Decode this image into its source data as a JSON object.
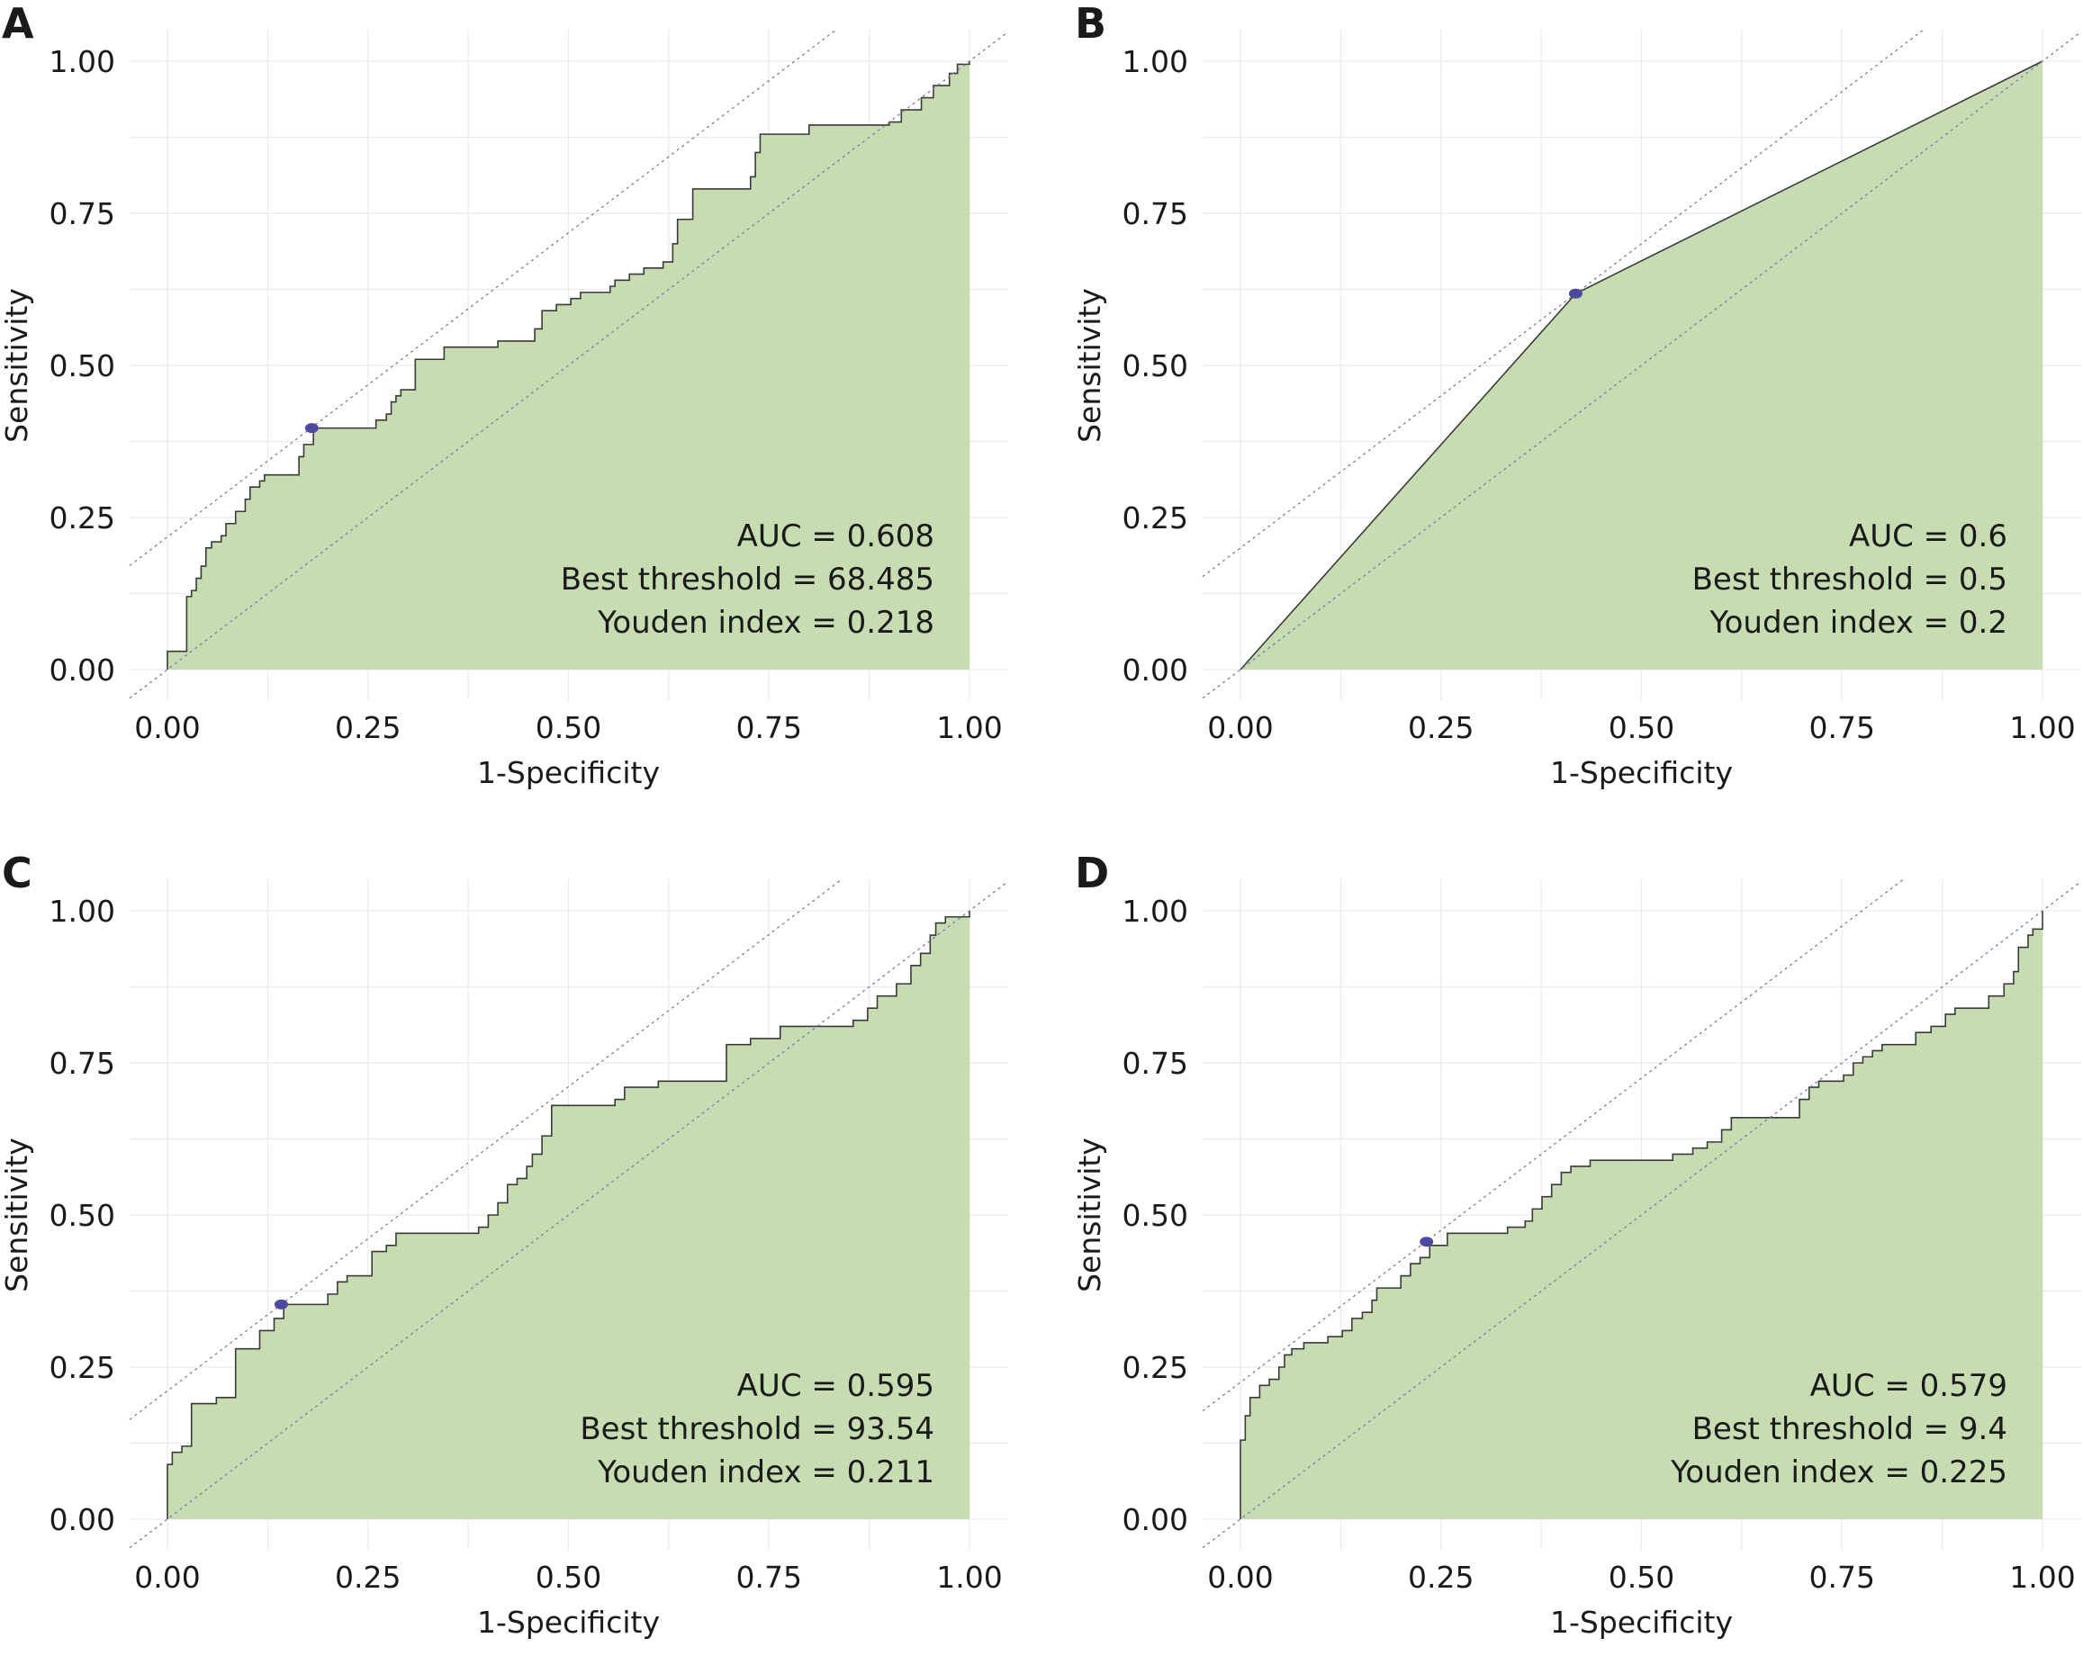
{
  "chart_data": [
    {
      "type": "area",
      "panel_label": "A",
      "xlabel": "1-Specificity",
      "ylabel": "Sensitivity",
      "xlim": [
        0,
        1
      ],
      "ylim": [
        0,
        1
      ],
      "x_ticks": [
        "0.00",
        "0.25",
        "0.50",
        "0.75",
        "1.00"
      ],
      "y_ticks": [
        "0.00",
        "0.25",
        "0.50",
        "0.75",
        "1.00"
      ],
      "grid": true,
      "annotations": [
        "AUC = 0.608",
        "Best threshold = 68.485",
        "Youden index = 0.218"
      ],
      "best_point": {
        "x": 0.18,
        "y": 0.397
      },
      "youden_line_intercept": 0.218,
      "roc_curve": [
        [
          0,
          0
        ],
        [
          0,
          0.03
        ],
        [
          0.024,
          0.03
        ],
        [
          0.024,
          0.12
        ],
        [
          0.03,
          0.12
        ],
        [
          0.03,
          0.13
        ],
        [
          0.036,
          0.13
        ],
        [
          0.036,
          0.15
        ],
        [
          0.042,
          0.15
        ],
        [
          0.042,
          0.17
        ],
        [
          0.048,
          0.17
        ],
        [
          0.048,
          0.2
        ],
        [
          0.055,
          0.2
        ],
        [
          0.055,
          0.21
        ],
        [
          0.067,
          0.21
        ],
        [
          0.067,
          0.22
        ],
        [
          0.073,
          0.22
        ],
        [
          0.073,
          0.24
        ],
        [
          0.085,
          0.24
        ],
        [
          0.085,
          0.26
        ],
        [
          0.097,
          0.26
        ],
        [
          0.097,
          0.28
        ],
        [
          0.103,
          0.28
        ],
        [
          0.103,
          0.3
        ],
        [
          0.115,
          0.3
        ],
        [
          0.115,
          0.31
        ],
        [
          0.121,
          0.31
        ],
        [
          0.121,
          0.32
        ],
        [
          0.164,
          0.32
        ],
        [
          0.164,
          0.35
        ],
        [
          0.17,
          0.35
        ],
        [
          0.17,
          0.37
        ],
        [
          0.182,
          0.37
        ],
        [
          0.182,
          0.397
        ],
        [
          0.26,
          0.397
        ],
        [
          0.26,
          0.41
        ],
        [
          0.273,
          0.41
        ],
        [
          0.273,
          0.42
        ],
        [
          0.279,
          0.42
        ],
        [
          0.279,
          0.44
        ],
        [
          0.285,
          0.44
        ],
        [
          0.285,
          0.45
        ],
        [
          0.291,
          0.45
        ],
        [
          0.291,
          0.46
        ],
        [
          0.309,
          0.46
        ],
        [
          0.309,
          0.51
        ],
        [
          0.345,
          0.51
        ],
        [
          0.345,
          0.53
        ],
        [
          0.412,
          0.53
        ],
        [
          0.412,
          0.54
        ],
        [
          0.458,
          0.54
        ],
        [
          0.458,
          0.56
        ],
        [
          0.467,
          0.56
        ],
        [
          0.467,
          0.59
        ],
        [
          0.485,
          0.59
        ],
        [
          0.485,
          0.6
        ],
        [
          0.503,
          0.6
        ],
        [
          0.503,
          0.61
        ],
        [
          0.515,
          0.61
        ],
        [
          0.515,
          0.62
        ],
        [
          0.552,
          0.62
        ],
        [
          0.552,
          0.63
        ],
        [
          0.558,
          0.63
        ],
        [
          0.558,
          0.64
        ],
        [
          0.576,
          0.64
        ],
        [
          0.576,
          0.65
        ],
        [
          0.594,
          0.65
        ],
        [
          0.594,
          0.66
        ],
        [
          0.618,
          0.66
        ],
        [
          0.618,
          0.67
        ],
        [
          0.63,
          0.67
        ],
        [
          0.63,
          0.7
        ],
        [
          0.636,
          0.7
        ],
        [
          0.636,
          0.74
        ],
        [
          0.655,
          0.74
        ],
        [
          0.655,
          0.79
        ],
        [
          0.727,
          0.79
        ],
        [
          0.727,
          0.81
        ],
        [
          0.733,
          0.81
        ],
        [
          0.733,
          0.85
        ],
        [
          0.739,
          0.85
        ],
        [
          0.739,
          0.88
        ],
        [
          0.8,
          0.88
        ],
        [
          0.8,
          0.895
        ],
        [
          0.9,
          0.895
        ],
        [
          0.9,
          0.9
        ],
        [
          0.915,
          0.9
        ],
        [
          0.915,
          0.92
        ],
        [
          0.94,
          0.92
        ],
        [
          0.94,
          0.94
        ],
        [
          0.955,
          0.94
        ],
        [
          0.955,
          0.96
        ],
        [
          0.975,
          0.96
        ],
        [
          0.975,
          0.98
        ],
        [
          0.985,
          0.98
        ],
        [
          0.985,
          0.995
        ],
        [
          1,
          0.995
        ],
        [
          1,
          1
        ]
      ]
    },
    {
      "type": "area",
      "panel_label": "B",
      "xlabel": "1-Specificity",
      "ylabel": "Sensitivity",
      "xlim": [
        0,
        1
      ],
      "ylim": [
        0,
        1
      ],
      "x_ticks": [
        "0.00",
        "0.25",
        "0.50",
        "0.75",
        "1.00"
      ],
      "y_ticks": [
        "0.00",
        "0.25",
        "0.50",
        "0.75",
        "1.00"
      ],
      "grid": true,
      "annotations": [
        "AUC = 0.6",
        "Best threshold = 0.5",
        "Youden index = 0.2"
      ],
      "best_point": {
        "x": 0.418,
        "y": 0.618
      },
      "youden_line_intercept": 0.2,
      "roc_curve": [
        [
          0,
          0
        ],
        [
          0.418,
          0.618
        ],
        [
          1,
          1
        ]
      ]
    },
    {
      "type": "area",
      "panel_label": "C",
      "xlabel": "1-Specificity",
      "ylabel": "Sensitivity",
      "xlim": [
        0,
        1
      ],
      "ylim": [
        0,
        1
      ],
      "x_ticks": [
        "0.00",
        "0.25",
        "0.50",
        "0.75",
        "1.00"
      ],
      "y_ticks": [
        "0.00",
        "0.25",
        "0.50",
        "0.75",
        "1.00"
      ],
      "grid": true,
      "annotations": [
        "AUC = 0.595",
        "Best threshold = 93.54",
        "Youden index = 0.211"
      ],
      "best_point": {
        "x": 0.142,
        "y": 0.353
      },
      "youden_line_intercept": 0.211,
      "roc_curve": [
        [
          0,
          0
        ],
        [
          0,
          0.09
        ],
        [
          0.006,
          0.09
        ],
        [
          0.006,
          0.11
        ],
        [
          0.018,
          0.11
        ],
        [
          0.018,
          0.12
        ],
        [
          0.03,
          0.12
        ],
        [
          0.03,
          0.19
        ],
        [
          0.061,
          0.19
        ],
        [
          0.061,
          0.2
        ],
        [
          0.085,
          0.2
        ],
        [
          0.085,
          0.28
        ],
        [
          0.115,
          0.28
        ],
        [
          0.115,
          0.31
        ],
        [
          0.133,
          0.31
        ],
        [
          0.133,
          0.33
        ],
        [
          0.145,
          0.33
        ],
        [
          0.145,
          0.353
        ],
        [
          0.2,
          0.353
        ],
        [
          0.2,
          0.37
        ],
        [
          0.212,
          0.37
        ],
        [
          0.212,
          0.39
        ],
        [
          0.224,
          0.39
        ],
        [
          0.224,
          0.4
        ],
        [
          0.255,
          0.4
        ],
        [
          0.255,
          0.44
        ],
        [
          0.273,
          0.44
        ],
        [
          0.273,
          0.45
        ],
        [
          0.285,
          0.45
        ],
        [
          0.285,
          0.47
        ],
        [
          0.388,
          0.47
        ],
        [
          0.388,
          0.48
        ],
        [
          0.4,
          0.48
        ],
        [
          0.4,
          0.5
        ],
        [
          0.412,
          0.5
        ],
        [
          0.412,
          0.52
        ],
        [
          0.424,
          0.52
        ],
        [
          0.424,
          0.55
        ],
        [
          0.436,
          0.55
        ],
        [
          0.436,
          0.56
        ],
        [
          0.448,
          0.56
        ],
        [
          0.448,
          0.58
        ],
        [
          0.455,
          0.58
        ],
        [
          0.455,
          0.6
        ],
        [
          0.467,
          0.6
        ],
        [
          0.467,
          0.63
        ],
        [
          0.479,
          0.63
        ],
        [
          0.479,
          0.68
        ],
        [
          0.558,
          0.68
        ],
        [
          0.558,
          0.69
        ],
        [
          0.57,
          0.69
        ],
        [
          0.57,
          0.71
        ],
        [
          0.612,
          0.71
        ],
        [
          0.612,
          0.72
        ],
        [
          0.697,
          0.72
        ],
        [
          0.697,
          0.78
        ],
        [
          0.727,
          0.78
        ],
        [
          0.727,
          0.79
        ],
        [
          0.764,
          0.79
        ],
        [
          0.764,
          0.81
        ],
        [
          0.855,
          0.81
        ],
        [
          0.855,
          0.82
        ],
        [
          0.873,
          0.82
        ],
        [
          0.873,
          0.84
        ],
        [
          0.885,
          0.84
        ],
        [
          0.885,
          0.86
        ],
        [
          0.909,
          0.86
        ],
        [
          0.909,
          0.88
        ],
        [
          0.927,
          0.88
        ],
        [
          0.927,
          0.91
        ],
        [
          0.939,
          0.91
        ],
        [
          0.939,
          0.93
        ],
        [
          0.951,
          0.93
        ],
        [
          0.951,
          0.96
        ],
        [
          0.958,
          0.96
        ],
        [
          0.958,
          0.98
        ],
        [
          0.97,
          0.98
        ],
        [
          0.97,
          0.99
        ],
        [
          1,
          0.99
        ],
        [
          1,
          1
        ]
      ]
    },
    {
      "type": "area",
      "panel_label": "D",
      "xlabel": "1-Specificity",
      "ylabel": "Sensitivity",
      "xlim": [
        0,
        1
      ],
      "ylim": [
        0,
        1
      ],
      "x_ticks": [
        "0.00",
        "0.25",
        "0.50",
        "0.75",
        "1.00"
      ],
      "y_ticks": [
        "0.00",
        "0.25",
        "0.50",
        "0.75",
        "1.00"
      ],
      "grid": true,
      "annotations": [
        "AUC = 0.579",
        "Best threshold = 9.4",
        "Youden index = 0.225"
      ],
      "best_point": {
        "x": 0.232,
        "y": 0.456
      },
      "youden_line_intercept": 0.225,
      "roc_curve": [
        [
          0,
          0
        ],
        [
          0,
          0.13
        ],
        [
          0.006,
          0.13
        ],
        [
          0.006,
          0.17
        ],
        [
          0.012,
          0.17
        ],
        [
          0.012,
          0.2
        ],
        [
          0.024,
          0.2
        ],
        [
          0.024,
          0.22
        ],
        [
          0.036,
          0.22
        ],
        [
          0.036,
          0.23
        ],
        [
          0.048,
          0.23
        ],
        [
          0.048,
          0.25
        ],
        [
          0.055,
          0.25
        ],
        [
          0.055,
          0.27
        ],
        [
          0.064,
          0.27
        ],
        [
          0.064,
          0.28
        ],
        [
          0.079,
          0.28
        ],
        [
          0.079,
          0.29
        ],
        [
          0.109,
          0.29
        ],
        [
          0.109,
          0.3
        ],
        [
          0.127,
          0.3
        ],
        [
          0.127,
          0.31
        ],
        [
          0.139,
          0.31
        ],
        [
          0.139,
          0.33
        ],
        [
          0.152,
          0.33
        ],
        [
          0.152,
          0.34
        ],
        [
          0.164,
          0.34
        ],
        [
          0.164,
          0.36
        ],
        [
          0.17,
          0.36
        ],
        [
          0.17,
          0.38
        ],
        [
          0.2,
          0.38
        ],
        [
          0.2,
          0.4
        ],
        [
          0.212,
          0.4
        ],
        [
          0.212,
          0.42
        ],
        [
          0.224,
          0.42
        ],
        [
          0.224,
          0.43
        ],
        [
          0.236,
          0.43
        ],
        [
          0.236,
          0.45
        ],
        [
          0.258,
          0.45
        ],
        [
          0.258,
          0.47
        ],
        [
          0.333,
          0.47
        ],
        [
          0.333,
          0.48
        ],
        [
          0.355,
          0.48
        ],
        [
          0.355,
          0.49
        ],
        [
          0.364,
          0.49
        ],
        [
          0.364,
          0.51
        ],
        [
          0.376,
          0.51
        ],
        [
          0.376,
          0.53
        ],
        [
          0.388,
          0.53
        ],
        [
          0.388,
          0.55
        ],
        [
          0.4,
          0.55
        ],
        [
          0.4,
          0.57
        ],
        [
          0.412,
          0.57
        ],
        [
          0.412,
          0.58
        ],
        [
          0.436,
          0.58
        ],
        [
          0.436,
          0.59
        ],
        [
          0.539,
          0.59
        ],
        [
          0.539,
          0.6
        ],
        [
          0.564,
          0.6
        ],
        [
          0.564,
          0.61
        ],
        [
          0.582,
          0.61
        ],
        [
          0.582,
          0.62
        ],
        [
          0.6,
          0.62
        ],
        [
          0.6,
          0.64
        ],
        [
          0.612,
          0.64
        ],
        [
          0.612,
          0.66
        ],
        [
          0.697,
          0.66
        ],
        [
          0.697,
          0.69
        ],
        [
          0.709,
          0.69
        ],
        [
          0.709,
          0.71
        ],
        [
          0.721,
          0.71
        ],
        [
          0.721,
          0.72
        ],
        [
          0.752,
          0.72
        ],
        [
          0.752,
          0.73
        ],
        [
          0.764,
          0.73
        ],
        [
          0.764,
          0.75
        ],
        [
          0.776,
          0.75
        ],
        [
          0.776,
          0.76
        ],
        [
          0.788,
          0.76
        ],
        [
          0.788,
          0.77
        ],
        [
          0.8,
          0.77
        ],
        [
          0.8,
          0.78
        ],
        [
          0.842,
          0.78
        ],
        [
          0.842,
          0.8
        ],
        [
          0.861,
          0.8
        ],
        [
          0.861,
          0.81
        ],
        [
          0.879,
          0.81
        ],
        [
          0.879,
          0.83
        ],
        [
          0.891,
          0.83
        ],
        [
          0.891,
          0.84
        ],
        [
          0.933,
          0.84
        ],
        [
          0.933,
          0.86
        ],
        [
          0.952,
          0.86
        ],
        [
          0.952,
          0.88
        ],
        [
          0.964,
          0.88
        ],
        [
          0.964,
          0.9
        ],
        [
          0.97,
          0.9
        ],
        [
          0.97,
          0.94
        ],
        [
          0.982,
          0.94
        ],
        [
          0.982,
          0.96
        ],
        [
          0.988,
          0.96
        ],
        [
          0.988,
          0.97
        ],
        [
          1,
          0.97
        ],
        [
          1,
          1
        ]
      ]
    }
  ]
}
